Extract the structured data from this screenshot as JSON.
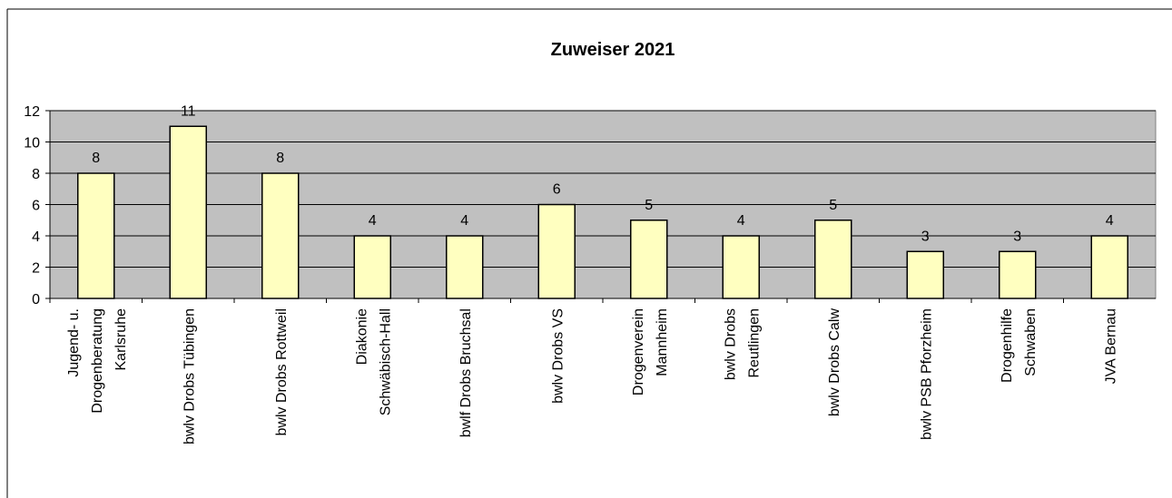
{
  "chart_data": {
    "type": "bar",
    "title": "Zuweiser 2021",
    "categories": [
      "Jugend- u.\nDrogenberatung\nKarlsruhe",
      "bwlv Drobs Tübingen",
      "bwlv Drobs Rottweil",
      "Diakonie\nSchwäbisch-Hall",
      "bwlf Drobs Bruchsal",
      "bwlv Drobs VS",
      "Drogenverein\nMannheim",
      "bwlv Drobs\nReutlingen",
      "bwlv Drobs Calw",
      "bwlv PSB Pforzheim",
      "Drogenhilfe\nSchwaben",
      "JVA Bernau"
    ],
    "values": [
      8,
      11,
      8,
      4,
      4,
      6,
      5,
      4,
      5,
      3,
      3,
      4
    ],
    "color": "#ffffc0",
    "plot_background": "#c0c0c0",
    "ylim": [
      0,
      12
    ],
    "yticks": [
      0,
      2,
      4,
      6,
      8,
      10,
      12
    ],
    "grid": true
  }
}
